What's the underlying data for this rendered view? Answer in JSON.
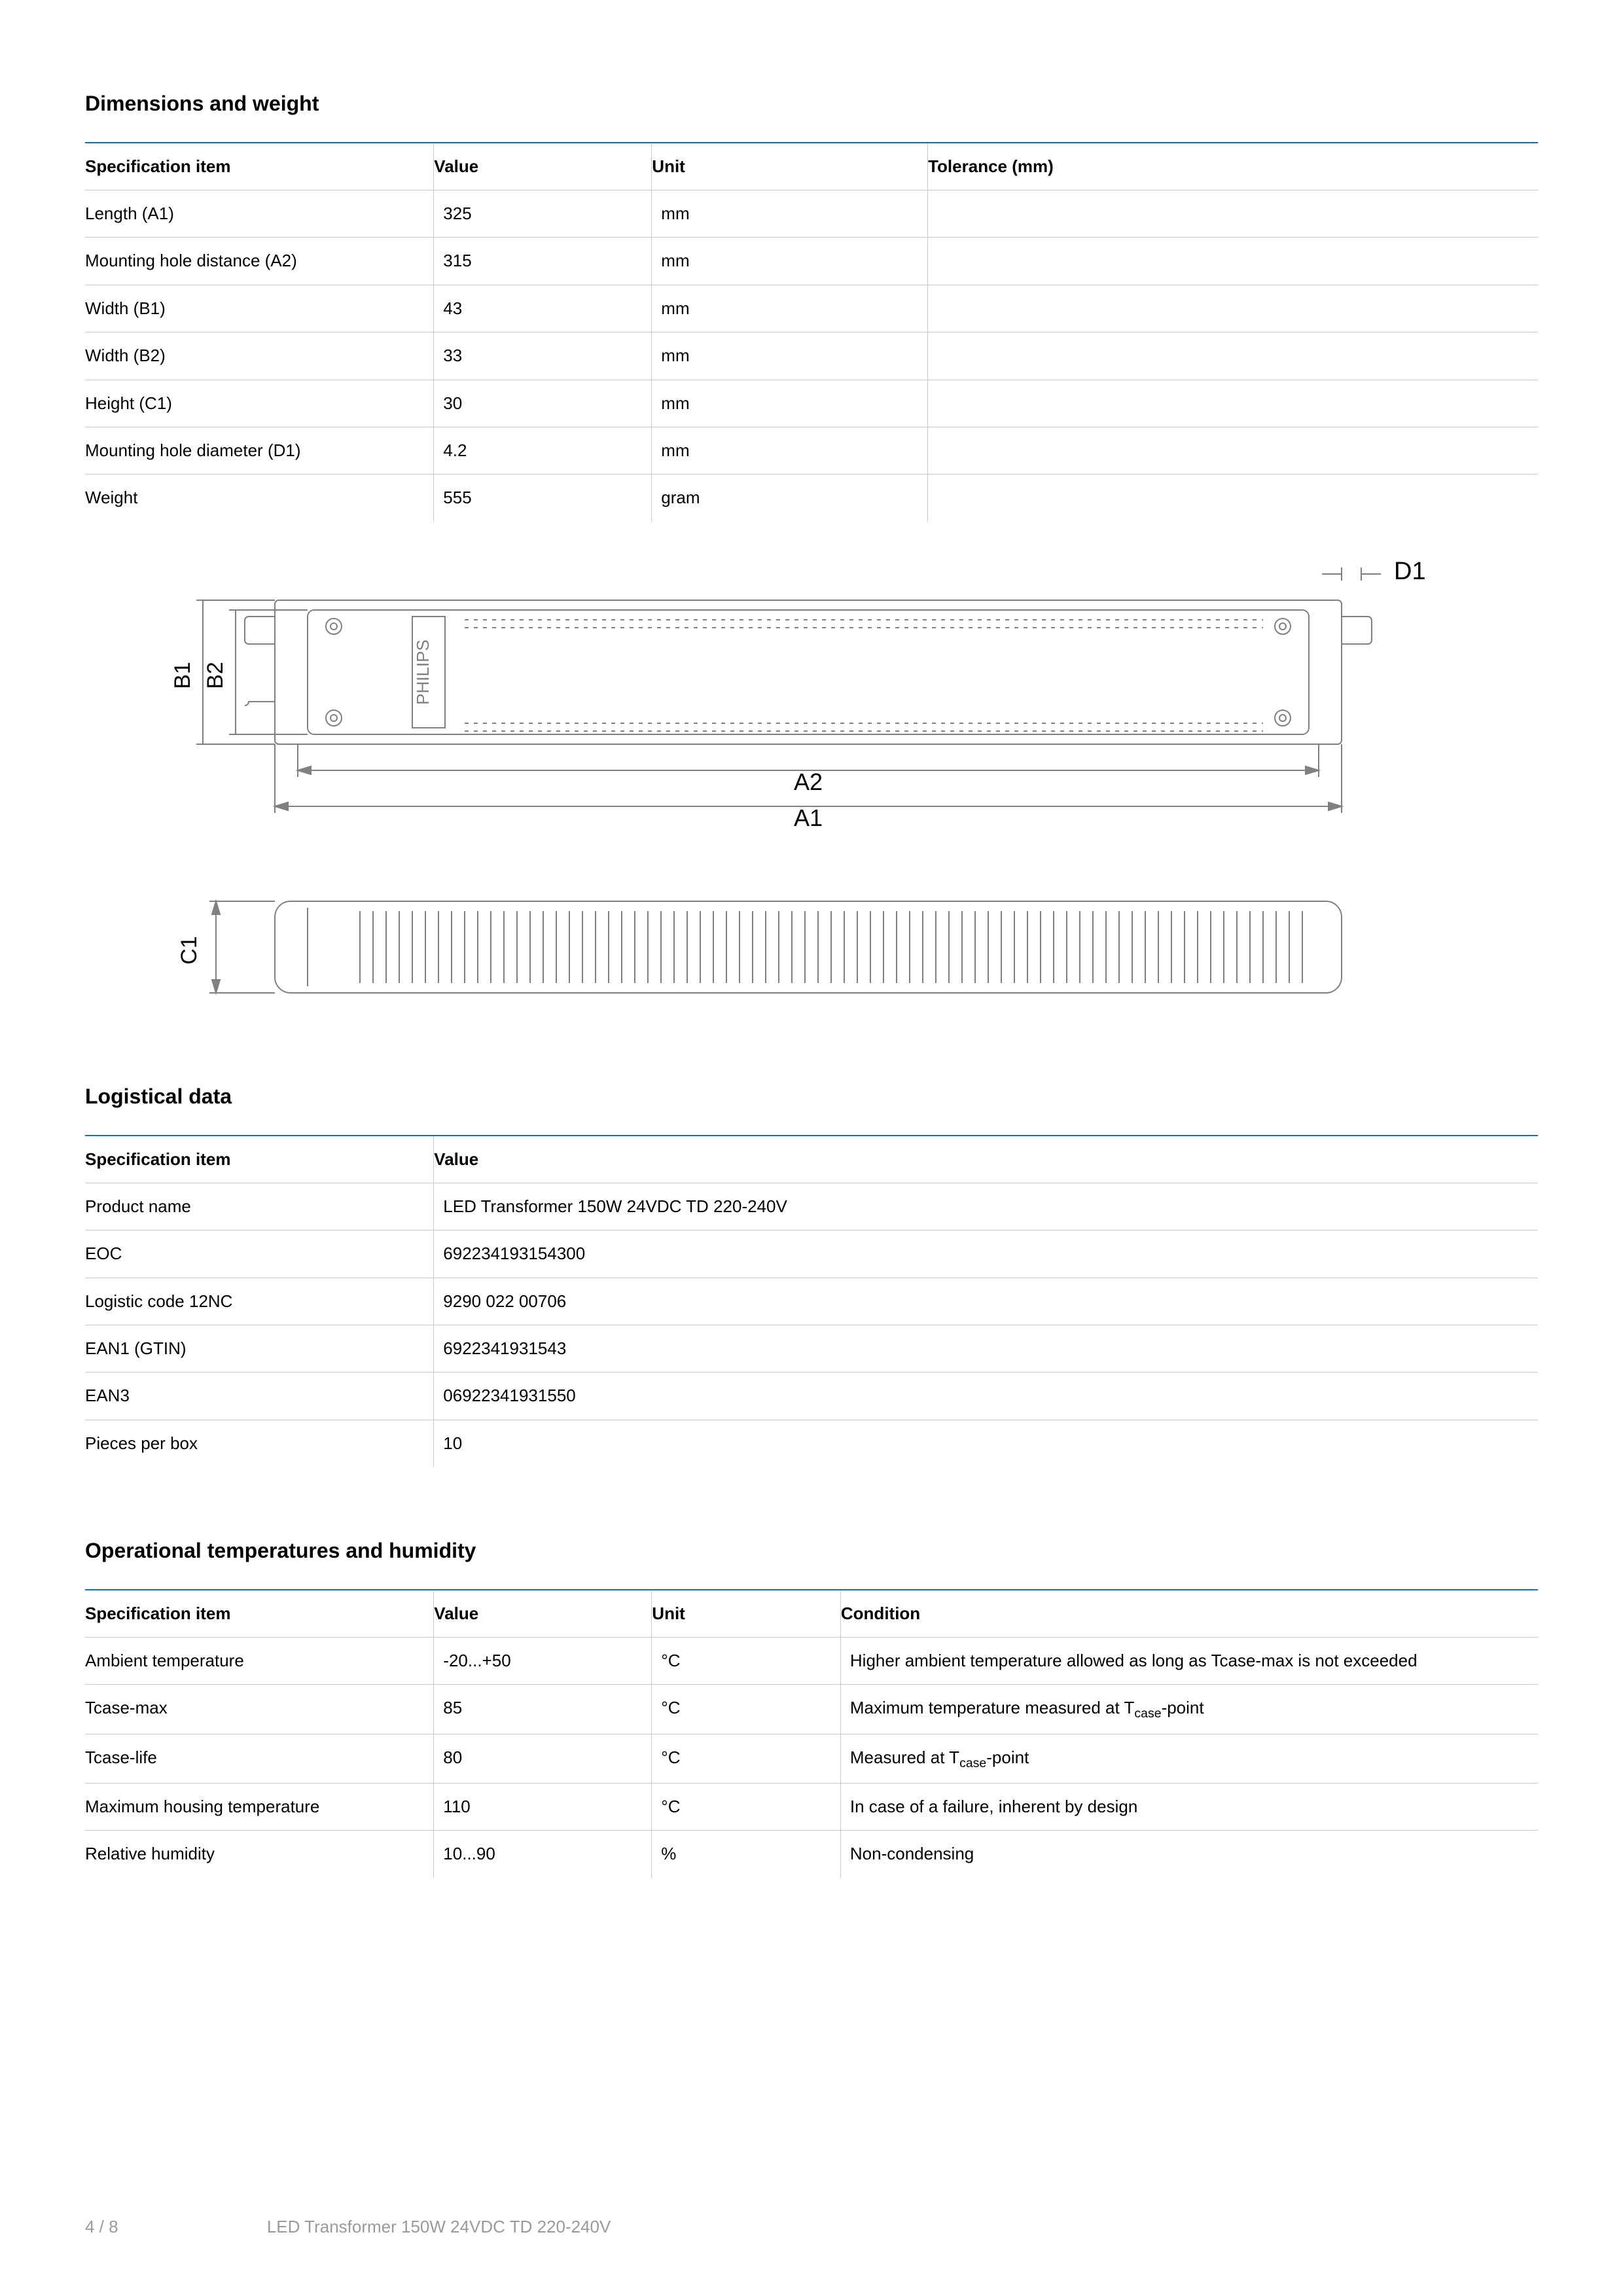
{
  "sections": {
    "dimensions": {
      "title": "Dimensions and weight",
      "columns": [
        "Specification item",
        "Value",
        "Unit",
        "Tolerance (mm)"
      ],
      "rows": [
        [
          "Length (A1)",
          "325",
          "mm",
          ""
        ],
        [
          "Mounting hole distance (A2)",
          "315",
          "mm",
          ""
        ],
        [
          "Width (B1)",
          "43",
          "mm",
          ""
        ],
        [
          "Width (B2)",
          "33",
          "mm",
          ""
        ],
        [
          "Height (C1)",
          "30",
          "mm",
          ""
        ],
        [
          "Mounting hole diameter (D1)",
          "4.2",
          "mm",
          ""
        ],
        [
          "Weight",
          "555",
          "gram",
          ""
        ]
      ]
    },
    "logistical": {
      "title": "Logistical data",
      "columns": [
        "Specification item",
        "Value"
      ],
      "rows": [
        [
          "Product name",
          "LED Transformer 150W 24VDC TD 220-240V"
        ],
        [
          "EOC",
          "692234193154300"
        ],
        [
          "Logistic code 12NC",
          "9290 022 00706"
        ],
        [
          "EAN1 (GTIN)",
          "6922341931543"
        ],
        [
          "EAN3",
          "06922341931550"
        ],
        [
          "Pieces per box",
          "10"
        ]
      ]
    },
    "operational": {
      "title": "Operational temperatures and humidity",
      "columns": [
        "Specification item",
        "Value",
        "Unit",
        "Condition"
      ],
      "rows": [
        [
          "Ambient temperature",
          "-20...+50",
          "°C",
          "Higher ambient temperature allowed as long as Tcase-max is not exceeded"
        ],
        [
          "Tcase-max",
          "85",
          "°C",
          "Maximum temperature measured at T<sub>case</sub>-point"
        ],
        [
          "Tcase-life",
          "80",
          "°C",
          "Measured at T<sub>case</sub>-point"
        ],
        [
          "Maximum housing temperature",
          "110",
          "°C",
          "In case of a failure, inherent by design"
        ],
        [
          "Relative humidity",
          "10...90",
          "%",
          "Non-condensing"
        ]
      ]
    }
  },
  "diagram": {
    "labels": {
      "D1": "D1",
      "B1": "B1",
      "B2": "B2",
      "A2": "A2",
      "A1": "A1",
      "C1": "C1",
      "brand": "PHILIPS"
    },
    "colors": {
      "stroke": "#808080",
      "label": "#000000"
    }
  },
  "footer": {
    "page": "4 / 8",
    "title": "LED Transformer 150W 24VDC TD 220-240V"
  },
  "style": {
    "accent_color": "#0a6ed1",
    "border_color": "#c8c8c8",
    "text_color": "#000000",
    "muted_color": "#9a9a9a",
    "background": "#ffffff",
    "title_fontsize": 32,
    "body_fontsize": 26
  }
}
